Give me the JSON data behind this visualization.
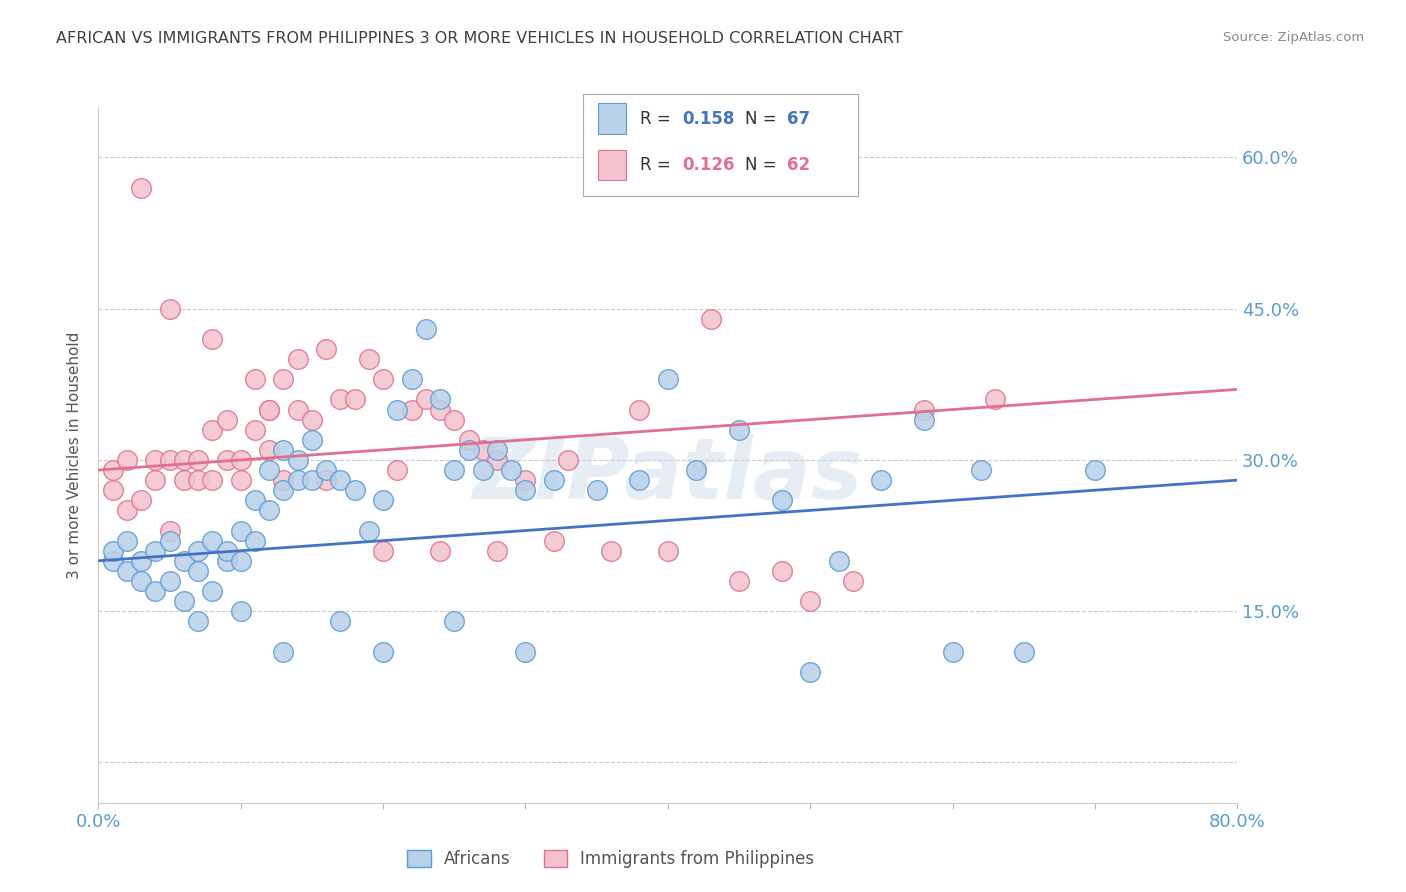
{
  "title": "AFRICAN VS IMMIGRANTS FROM PHILIPPINES 3 OR MORE VEHICLES IN HOUSEHOLD CORRELATION CHART",
  "source": "Source: ZipAtlas.com",
  "ylabel": "3 or more Vehicles in Household",
  "xlim": [
    0.0,
    0.8
  ],
  "ylim": [
    -0.04,
    0.65
  ],
  "yticks": [
    0.0,
    0.15,
    0.3,
    0.45,
    0.6
  ],
  "xticks": [
    0.0,
    0.1,
    0.2,
    0.3,
    0.4,
    0.5,
    0.6,
    0.7,
    0.8
  ],
  "blue_fill": "#b8d0e8",
  "blue_edge": "#5b9bd5",
  "pink_fill": "#f4c2cc",
  "pink_edge": "#e07090",
  "line_blue": "#4472c4",
  "line_pink": "#e07090",
  "R_blue": 0.158,
  "N_blue": 67,
  "R_pink": 0.126,
  "N_pink": 62,
  "blue_intercept": 0.2,
  "blue_slope": 0.1,
  "pink_intercept": 0.29,
  "pink_slope": 0.1,
  "africans_x": [
    0.01,
    0.01,
    0.02,
    0.02,
    0.03,
    0.03,
    0.04,
    0.04,
    0.05,
    0.05,
    0.06,
    0.06,
    0.07,
    0.07,
    0.08,
    0.08,
    0.09,
    0.09,
    0.1,
    0.1,
    0.11,
    0.11,
    0.12,
    0.12,
    0.13,
    0.13,
    0.14,
    0.14,
    0.15,
    0.15,
    0.16,
    0.17,
    0.18,
    0.19,
    0.2,
    0.21,
    0.22,
    0.23,
    0.24,
    0.25,
    0.26,
    0.27,
    0.28,
    0.29,
    0.3,
    0.32,
    0.35,
    0.38,
    0.4,
    0.42,
    0.45,
    0.48,
    0.5,
    0.52,
    0.55,
    0.58,
    0.6,
    0.62,
    0.65,
    0.7,
    0.07,
    0.1,
    0.13,
    0.17,
    0.2,
    0.25,
    0.3
  ],
  "africans_y": [
    0.2,
    0.21,
    0.19,
    0.22,
    0.18,
    0.2,
    0.21,
    0.17,
    0.22,
    0.18,
    0.2,
    0.16,
    0.21,
    0.19,
    0.22,
    0.17,
    0.2,
    0.21,
    0.23,
    0.2,
    0.26,
    0.22,
    0.29,
    0.25,
    0.31,
    0.27,
    0.28,
    0.3,
    0.32,
    0.28,
    0.29,
    0.28,
    0.27,
    0.23,
    0.26,
    0.35,
    0.38,
    0.43,
    0.36,
    0.29,
    0.31,
    0.29,
    0.31,
    0.29,
    0.27,
    0.28,
    0.27,
    0.28,
    0.38,
    0.29,
    0.33,
    0.26,
    0.09,
    0.2,
    0.28,
    0.34,
    0.11,
    0.29,
    0.11,
    0.29,
    0.14,
    0.15,
    0.11,
    0.14,
    0.11,
    0.14,
    0.11
  ],
  "philippines_x": [
    0.01,
    0.01,
    0.02,
    0.02,
    0.03,
    0.03,
    0.04,
    0.04,
    0.05,
    0.05,
    0.06,
    0.06,
    0.07,
    0.07,
    0.08,
    0.08,
    0.09,
    0.09,
    0.1,
    0.1,
    0.11,
    0.11,
    0.12,
    0.12,
    0.13,
    0.13,
    0.14,
    0.14,
    0.15,
    0.16,
    0.17,
    0.18,
    0.19,
    0.2,
    0.21,
    0.22,
    0.23,
    0.24,
    0.25,
    0.26,
    0.27,
    0.28,
    0.3,
    0.33,
    0.38,
    0.43,
    0.48,
    0.53,
    0.58,
    0.63,
    0.05,
    0.08,
    0.12,
    0.16,
    0.2,
    0.24,
    0.28,
    0.32,
    0.36,
    0.4,
    0.45,
    0.5
  ],
  "philippines_y": [
    0.27,
    0.29,
    0.3,
    0.25,
    0.57,
    0.26,
    0.28,
    0.3,
    0.23,
    0.3,
    0.28,
    0.3,
    0.28,
    0.3,
    0.33,
    0.28,
    0.34,
    0.3,
    0.28,
    0.3,
    0.38,
    0.33,
    0.31,
    0.35,
    0.28,
    0.38,
    0.4,
    0.35,
    0.34,
    0.41,
    0.36,
    0.36,
    0.4,
    0.38,
    0.29,
    0.35,
    0.36,
    0.35,
    0.34,
    0.32,
    0.31,
    0.3,
    0.28,
    0.3,
    0.35,
    0.44,
    0.19,
    0.18,
    0.35,
    0.36,
    0.45,
    0.42,
    0.35,
    0.28,
    0.21,
    0.21,
    0.21,
    0.22,
    0.21,
    0.21,
    0.18,
    0.16
  ],
  "watermark": "ZIPatlas",
  "background_color": "#ffffff",
  "grid_color": "#cccccc",
  "title_color": "#404040",
  "axis_label_color": "#555555",
  "tick_color": "#5b9bd5",
  "source_color": "#888888"
}
